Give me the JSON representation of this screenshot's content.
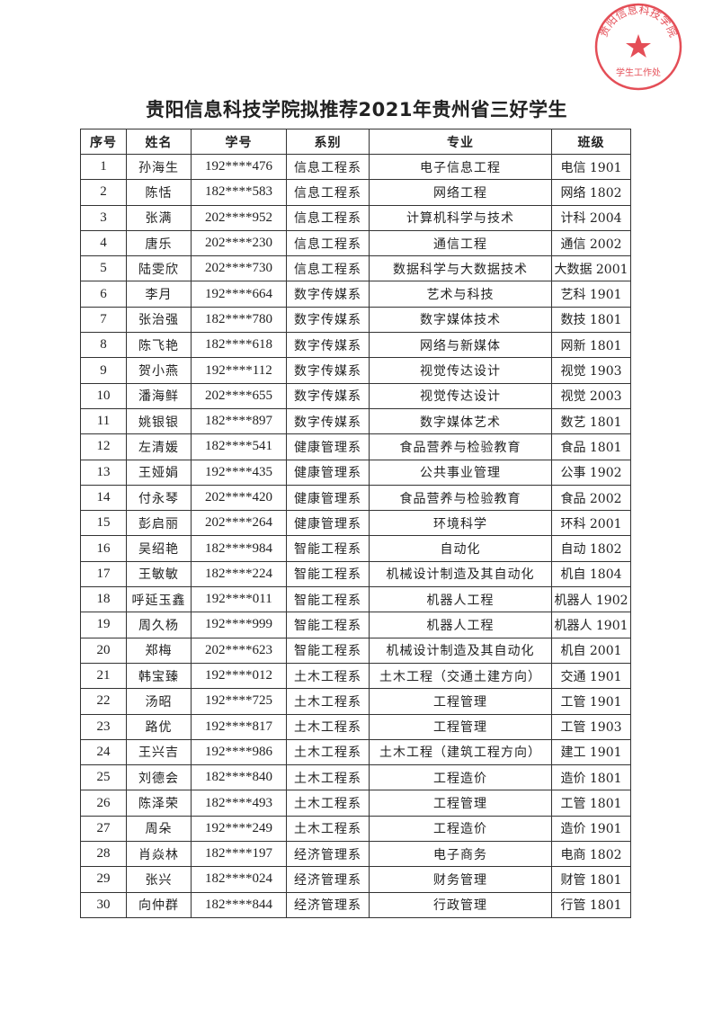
{
  "title": "贵阳信息科技学院拟推荐2021年贵州省三好学生",
  "table": {
    "headers": [
      "序号",
      "姓名",
      "学号",
      "系别",
      "专业",
      "班级"
    ],
    "rows": [
      [
        "1",
        "孙海生",
        "192****476",
        "信息工程系",
        "电子信息工程",
        "电信 1901"
      ],
      [
        "2",
        "陈恬",
        "182****583",
        "信息工程系",
        "网络工程",
        "网络 1802"
      ],
      [
        "3",
        "张满",
        "202****952",
        "信息工程系",
        "计算机科学与技术",
        "计科 2004"
      ],
      [
        "4",
        "唐乐",
        "202****230",
        "信息工程系",
        "通信工程",
        "通信 2002"
      ],
      [
        "5",
        "陆雯欣",
        "202****730",
        "信息工程系",
        "数据科学与大数据技术",
        "大数据 2001"
      ],
      [
        "6",
        "李月",
        "192****664",
        "数字传媒系",
        "艺术与科技",
        "艺科 1901"
      ],
      [
        "7",
        "张治强",
        "182****780",
        "数字传媒系",
        "数字媒体技术",
        "数技 1801"
      ],
      [
        "8",
        "陈飞艳",
        "182****618",
        "数字传媒系",
        "网络与新媒体",
        "网新 1801"
      ],
      [
        "9",
        "贺小燕",
        "192****112",
        "数字传媒系",
        "视觉传达设计",
        "视觉 1903"
      ],
      [
        "10",
        "潘海鲜",
        "202****655",
        "数字传媒系",
        "视觉传达设计",
        "视觉 2003"
      ],
      [
        "11",
        "姚银银",
        "182****897",
        "数字传媒系",
        "数字媒体艺术",
        "数艺 1801"
      ],
      [
        "12",
        "左清媛",
        "182****541",
        "健康管理系",
        "食品营养与检验教育",
        "食品 1801"
      ],
      [
        "13",
        "王娅娟",
        "192****435",
        "健康管理系",
        "公共事业管理",
        "公事 1902"
      ],
      [
        "14",
        "付永琴",
        "202****420",
        "健康管理系",
        "食品营养与检验教育",
        "食品 2002"
      ],
      [
        "15",
        "彭启丽",
        "202****264",
        "健康管理系",
        "环境科学",
        "环科 2001"
      ],
      [
        "16",
        "吴绍艳",
        "182****984",
        "智能工程系",
        "自动化",
        "自动 1802"
      ],
      [
        "17",
        "王敏敏",
        "182****224",
        "智能工程系",
        "机械设计制造及其自动化",
        "机自 1804"
      ],
      [
        "18",
        "呼延玉鑫",
        "192****011",
        "智能工程系",
        "机器人工程",
        "机器人 1902"
      ],
      [
        "19",
        "周久杨",
        "192****999",
        "智能工程系",
        "机器人工程",
        "机器人 1901"
      ],
      [
        "20",
        "郑梅",
        "202****623",
        "智能工程系",
        "机械设计制造及其自动化",
        "机自 2001"
      ],
      [
        "21",
        "韩宝臻",
        "192****012",
        "土木工程系",
        "土木工程（交通土建方向）",
        "交通 1901"
      ],
      [
        "22",
        "汤昭",
        "192****725",
        "土木工程系",
        "工程管理",
        "工管 1901"
      ],
      [
        "23",
        "路优",
        "192****817",
        "土木工程系",
        "工程管理",
        "工管 1903"
      ],
      [
        "24",
        "王兴吉",
        "192****986",
        "土木工程系",
        "土木工程（建筑工程方向）",
        "建工 1901"
      ],
      [
        "25",
        "刘德会",
        "182****840",
        "土木工程系",
        "工程造价",
        "造价 1801"
      ],
      [
        "26",
        "陈泽荣",
        "182****493",
        "土木工程系",
        "工程管理",
        "工管 1801"
      ],
      [
        "27",
        "周朵",
        "192****249",
        "土木工程系",
        "工程造价",
        "造价 1901"
      ],
      [
        "28",
        "肖焱林",
        "182****197",
        "经济管理系",
        "电子商务",
        "电商 1802"
      ],
      [
        "29",
        "张兴",
        "182****024",
        "经济管理系",
        "财务管理",
        "财管 1801"
      ],
      [
        "30",
        "向仲群",
        "182****844",
        "经济管理系",
        "行政管理",
        "行管 1801"
      ]
    ]
  },
  "stamp": {
    "outer_text": "贵阳信息科技学院",
    "inner_text": "学生工作处",
    "color": "#e0303a"
  }
}
